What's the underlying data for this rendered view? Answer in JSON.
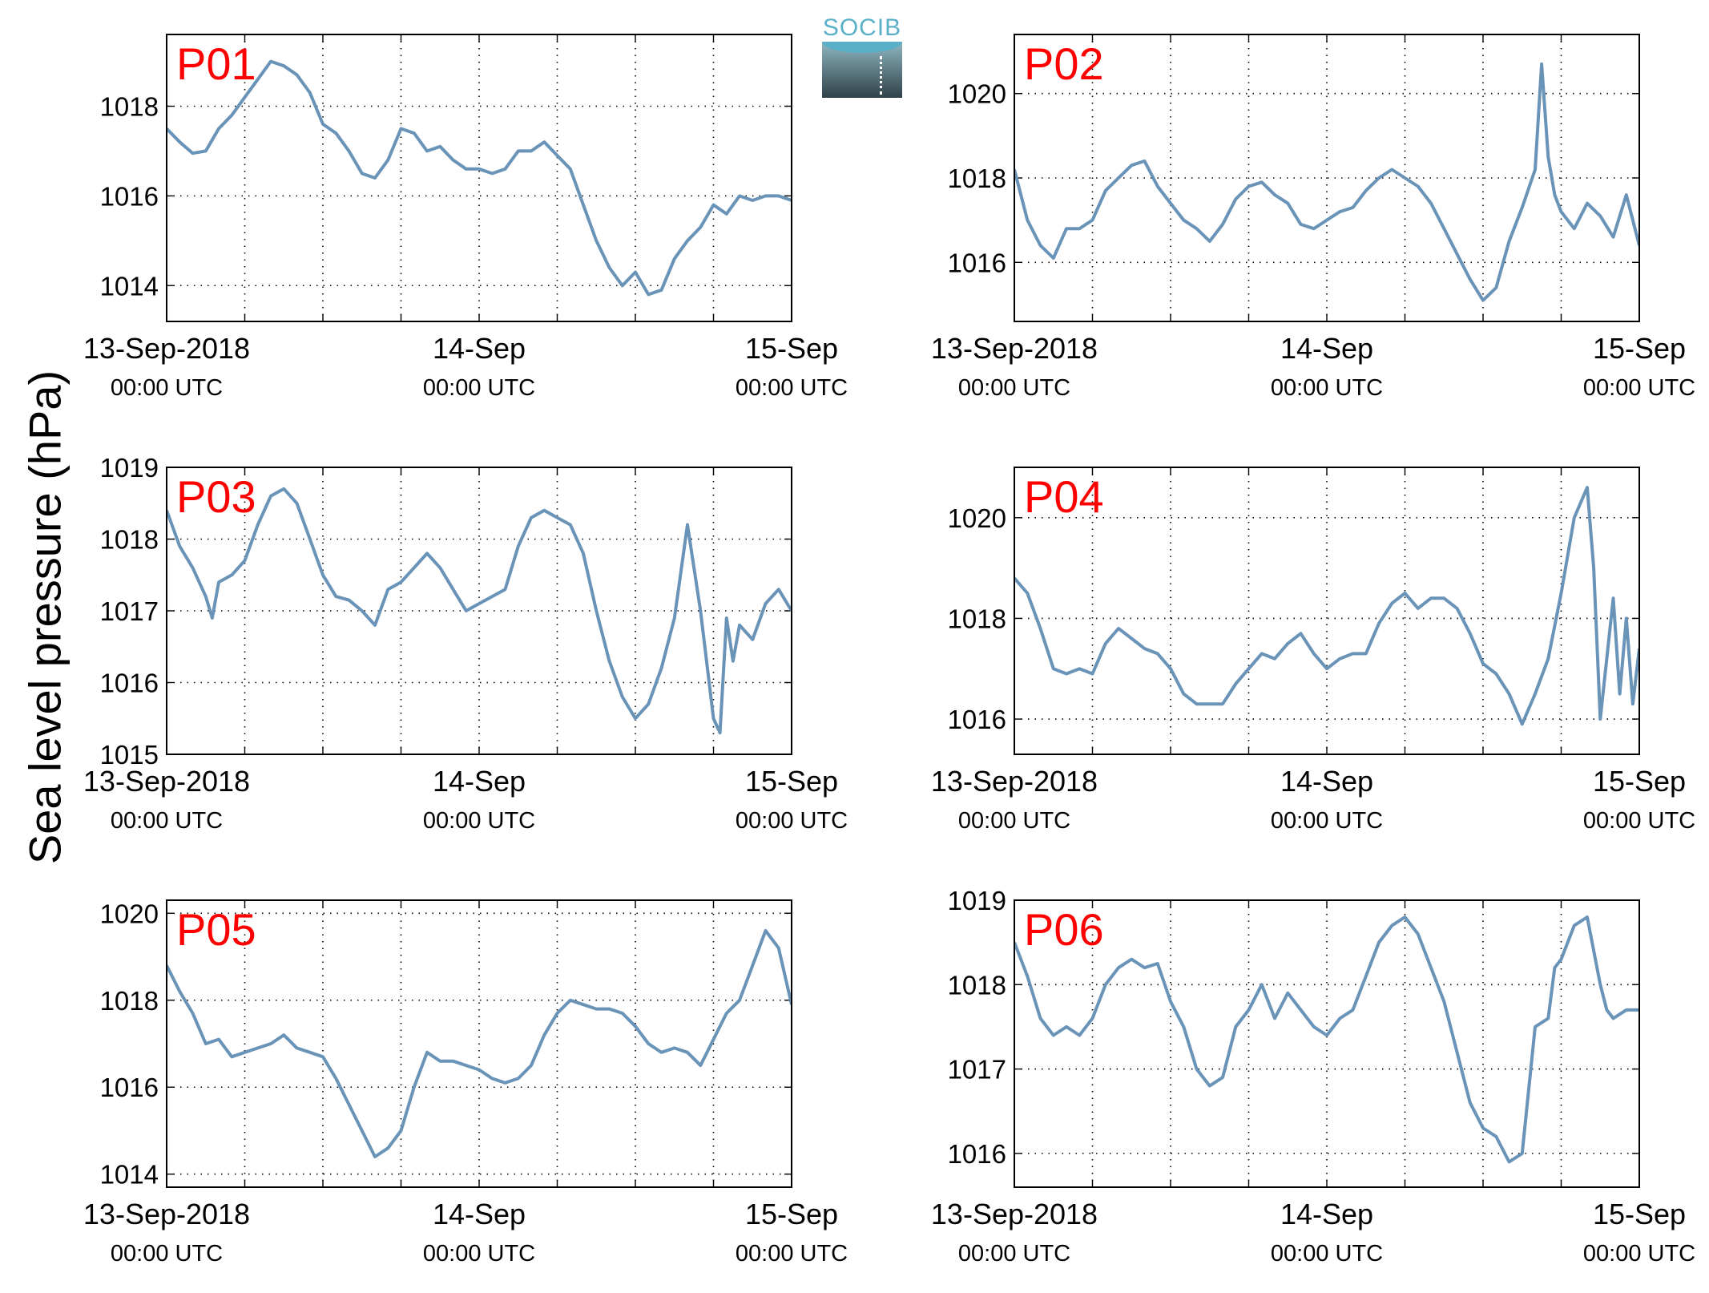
{
  "figure": {
    "ylabel": "Sea level pressure (hPa)",
    "logo_text": "SOCIB"
  },
  "chart_data": [
    {
      "type": "line",
      "title": "P01",
      "x_ticks": [
        {
          "date": "13-Sep-2018",
          "time": "00:00 UTC"
        },
        {
          "date": "14-Sep",
          "time": "00:00 UTC"
        },
        {
          "date": "15-Sep",
          "time": "00:00 UTC"
        }
      ],
      "xlim_hours": [
        0,
        48
      ],
      "ylim": [
        1013.2,
        1019.6
      ],
      "yticks": [
        1014,
        1016,
        1018
      ],
      "grid": true,
      "color": "#6a93b8",
      "series": [
        {
          "x": [
            0,
            1,
            2,
            3,
            4,
            5,
            6,
            7,
            8,
            9,
            10,
            11,
            12,
            13,
            14,
            15,
            16,
            17,
            18,
            19,
            20,
            21,
            22,
            23,
            24,
            25,
            26,
            27,
            28,
            29,
            30,
            31,
            32,
            33,
            34,
            35,
            36,
            37,
            38,
            39,
            40,
            41,
            42,
            43,
            44,
            45,
            46,
            47,
            48
          ],
          "values": [
            1017.5,
            1017.2,
            1016.95,
            1017.0,
            1017.5,
            1017.8,
            1018.2,
            1018.6,
            1019.0,
            1018.9,
            1018.7,
            1018.3,
            1017.6,
            1017.4,
            1017.0,
            1016.5,
            1016.4,
            1016.8,
            1017.5,
            1017.4,
            1017.0,
            1017.1,
            1016.8,
            1016.6,
            1016.6,
            1016.5,
            1016.6,
            1017.0,
            1017.0,
            1017.2,
            1016.9,
            1016.6,
            1015.8,
            1015.0,
            1014.4,
            1014.0,
            1014.3,
            1013.8,
            1013.9,
            1014.6,
            1015.0,
            1015.3,
            1015.8,
            1015.6,
            1016.0,
            1015.9,
            1016.0,
            1016.0,
            1015.9
          ]
        }
      ]
    },
    {
      "type": "line",
      "title": "P02",
      "x_ticks": [
        {
          "date": "13-Sep-2018",
          "time": "00:00 UTC"
        },
        {
          "date": "14-Sep",
          "time": "00:00 UTC"
        },
        {
          "date": "15-Sep",
          "time": "00:00 UTC"
        }
      ],
      "xlim_hours": [
        0,
        48
      ],
      "ylim": [
        1014.6,
        1021.4
      ],
      "yticks": [
        1016,
        1018,
        1020
      ],
      "grid": true,
      "color": "#6a93b8",
      "series": [
        {
          "x": [
            0,
            1,
            2,
            3,
            4,
            5,
            6,
            7,
            8,
            9,
            10,
            11,
            12,
            13,
            14,
            15,
            16,
            17,
            18,
            19,
            20,
            21,
            22,
            23,
            24,
            25,
            26,
            27,
            28,
            29,
            30,
            31,
            32,
            33,
            34,
            35,
            36,
            37,
            38,
            39,
            40,
            40.5,
            41,
            41.5,
            42,
            43,
            44,
            45,
            46,
            47,
            48
          ],
          "values": [
            1018.2,
            1017.0,
            1016.4,
            1016.1,
            1016.8,
            1016.8,
            1017.0,
            1017.7,
            1018.0,
            1018.3,
            1018.4,
            1017.8,
            1017.4,
            1017.0,
            1016.8,
            1016.5,
            1016.9,
            1017.5,
            1017.8,
            1017.9,
            1017.6,
            1017.4,
            1016.9,
            1016.8,
            1017.0,
            1017.2,
            1017.3,
            1017.7,
            1018.0,
            1018.2,
            1018.0,
            1017.8,
            1017.4,
            1016.8,
            1016.2,
            1015.6,
            1015.1,
            1015.4,
            1016.5,
            1017.3,
            1018.2,
            1020.7,
            1018.5,
            1017.6,
            1017.2,
            1016.8,
            1017.4,
            1017.1,
            1016.6,
            1017.6,
            1016.4
          ]
        }
      ]
    },
    {
      "type": "line",
      "title": "P03",
      "x_ticks": [
        {
          "date": "13-Sep-2018",
          "time": "00:00 UTC"
        },
        {
          "date": "14-Sep",
          "time": "00:00 UTC"
        },
        {
          "date": "15-Sep",
          "time": "00:00 UTC"
        }
      ],
      "xlim_hours": [
        0,
        48
      ],
      "ylim": [
        1015.0,
        1019.0
      ],
      "yticks": [
        1015,
        1016,
        1017,
        1018,
        1019
      ],
      "grid": true,
      "color": "#6a93b8",
      "series": [
        {
          "x": [
            0,
            1,
            2,
            3,
            3.5,
            4,
            5,
            6,
            7,
            8,
            9,
            10,
            11,
            12,
            13,
            14,
            15,
            16,
            17,
            18,
            19,
            20,
            21,
            22,
            23,
            24,
            25,
            26,
            27,
            28,
            29,
            30,
            31,
            32,
            33,
            34,
            35,
            36,
            37,
            38,
            39,
            40,
            41,
            42,
            42.5,
            43,
            43.5,
            44,
            45,
            46,
            47,
            48
          ],
          "values": [
            1018.4,
            1017.9,
            1017.6,
            1017.2,
            1016.9,
            1017.4,
            1017.5,
            1017.7,
            1018.2,
            1018.6,
            1018.7,
            1018.5,
            1018.0,
            1017.5,
            1017.2,
            1017.15,
            1017.0,
            1016.8,
            1017.3,
            1017.4,
            1017.6,
            1017.8,
            1017.6,
            1017.3,
            1017.0,
            1017.1,
            1017.2,
            1017.3,
            1017.9,
            1018.3,
            1018.4,
            1018.3,
            1018.2,
            1017.8,
            1017.0,
            1016.3,
            1015.8,
            1015.5,
            1015.7,
            1016.2,
            1016.9,
            1018.2,
            1017.0,
            1015.5,
            1015.3,
            1016.9,
            1016.3,
            1016.8,
            1016.6,
            1017.1,
            1017.3,
            1017.0
          ]
        }
      ]
    },
    {
      "type": "line",
      "title": "P04",
      "x_ticks": [
        {
          "date": "13-Sep-2018",
          "time": "00:00 UTC"
        },
        {
          "date": "14-Sep",
          "time": "00:00 UTC"
        },
        {
          "date": "15-Sep",
          "time": "00:00 UTC"
        }
      ],
      "xlim_hours": [
        0,
        48
      ],
      "ylim": [
        1015.3,
        1021.0
      ],
      "yticks": [
        1016,
        1018,
        1020
      ],
      "grid": true,
      "color": "#6a93b8",
      "series": [
        {
          "x": [
            0,
            1,
            2,
            3,
            4,
            5,
            6,
            7,
            8,
            9,
            10,
            11,
            12,
            13,
            14,
            15,
            16,
            17,
            18,
            19,
            20,
            21,
            22,
            23,
            24,
            25,
            26,
            27,
            28,
            29,
            30,
            31,
            32,
            33,
            34,
            35,
            36,
            37,
            38,
            39,
            40,
            41,
            42,
            43,
            44,
            44.5,
            45,
            46,
            46.5,
            47,
            47.5,
            48
          ],
          "values": [
            1018.8,
            1018.5,
            1017.8,
            1017.0,
            1016.9,
            1017.0,
            1016.9,
            1017.5,
            1017.8,
            1017.6,
            1017.4,
            1017.3,
            1017.0,
            1016.5,
            1016.3,
            1016.3,
            1016.3,
            1016.7,
            1017.0,
            1017.3,
            1017.2,
            1017.5,
            1017.7,
            1017.3,
            1017.0,
            1017.2,
            1017.3,
            1017.3,
            1017.9,
            1018.3,
            1018.5,
            1018.2,
            1018.4,
            1018.4,
            1018.2,
            1017.7,
            1017.1,
            1016.9,
            1016.5,
            1015.9,
            1016.5,
            1017.2,
            1018.5,
            1020.0,
            1020.6,
            1019.0,
            1016.0,
            1018.4,
            1016.5,
            1018.0,
            1016.3,
            1017.4
          ]
        }
      ]
    },
    {
      "type": "line",
      "title": "P05",
      "x_ticks": [
        {
          "date": "13-Sep-2018",
          "time": "00:00 UTC"
        },
        {
          "date": "14-Sep",
          "time": "00:00 UTC"
        },
        {
          "date": "15-Sep",
          "time": "00:00 UTC"
        }
      ],
      "xlim_hours": [
        0,
        48
      ],
      "ylim": [
        1013.7,
        1020.3
      ],
      "yticks": [
        1014,
        1016,
        1018,
        1020
      ],
      "grid": true,
      "color": "#6a93b8",
      "series": [
        {
          "x": [
            0,
            1,
            2,
            3,
            4,
            5,
            6,
            7,
            8,
            9,
            10,
            11,
            12,
            13,
            14,
            15,
            16,
            17,
            18,
            19,
            20,
            21,
            22,
            23,
            24,
            25,
            26,
            27,
            28,
            29,
            30,
            31,
            32,
            33,
            34,
            35,
            36,
            37,
            38,
            39,
            40,
            41,
            42,
            43,
            44,
            45,
            46,
            47,
            48
          ],
          "values": [
            1018.8,
            1018.2,
            1017.7,
            1017.0,
            1017.1,
            1016.7,
            1016.8,
            1016.9,
            1017.0,
            1017.2,
            1016.9,
            1016.8,
            1016.7,
            1016.2,
            1015.6,
            1015.0,
            1014.4,
            1014.6,
            1015.0,
            1016.0,
            1016.8,
            1016.6,
            1016.6,
            1016.5,
            1016.4,
            1016.2,
            1016.1,
            1016.2,
            1016.5,
            1017.2,
            1017.7,
            1018.0,
            1017.9,
            1017.8,
            1017.8,
            1017.7,
            1017.4,
            1017.0,
            1016.8,
            1016.9,
            1016.8,
            1016.5,
            1017.1,
            1017.7,
            1018.0,
            1018.8,
            1019.6,
            1019.2,
            1017.9
          ]
        }
      ]
    },
    {
      "type": "line",
      "title": "P06",
      "x_ticks": [
        {
          "date": "13-Sep-2018",
          "time": "00:00 UTC"
        },
        {
          "date": "14-Sep",
          "time": "00:00 UTC"
        },
        {
          "date": "15-Sep",
          "time": "00:00 UTC"
        }
      ],
      "xlim_hours": [
        0,
        48
      ],
      "ylim": [
        1015.6,
        1019.0
      ],
      "yticks": [
        1016,
        1017,
        1018,
        1019
      ],
      "grid": true,
      "color": "#6a93b8",
      "series": [
        {
          "x": [
            0,
            1,
            2,
            3,
            4,
            5,
            6,
            7,
            8,
            9,
            10,
            11,
            12,
            13,
            14,
            15,
            16,
            17,
            18,
            19,
            20,
            21,
            22,
            23,
            24,
            25,
            26,
            27,
            28,
            29,
            30,
            31,
            32,
            33,
            34,
            35,
            36,
            37,
            38,
            39,
            40,
            41,
            41.5,
            42,
            43,
            44,
            45,
            45.5,
            46,
            47,
            48
          ],
          "values": [
            1018.5,
            1018.1,
            1017.6,
            1017.4,
            1017.5,
            1017.4,
            1017.6,
            1018.0,
            1018.2,
            1018.3,
            1018.2,
            1018.25,
            1017.8,
            1017.5,
            1017.0,
            1016.8,
            1016.9,
            1017.5,
            1017.7,
            1018.0,
            1017.6,
            1017.9,
            1017.7,
            1017.5,
            1017.4,
            1017.6,
            1017.7,
            1018.1,
            1018.5,
            1018.7,
            1018.8,
            1018.6,
            1018.2,
            1017.8,
            1017.2,
            1016.6,
            1016.3,
            1016.2,
            1015.9,
            1016.0,
            1017.5,
            1017.6,
            1018.2,
            1018.3,
            1018.7,
            1018.8,
            1018.0,
            1017.7,
            1017.6,
            1017.7,
            1017.7
          ]
        }
      ]
    }
  ]
}
